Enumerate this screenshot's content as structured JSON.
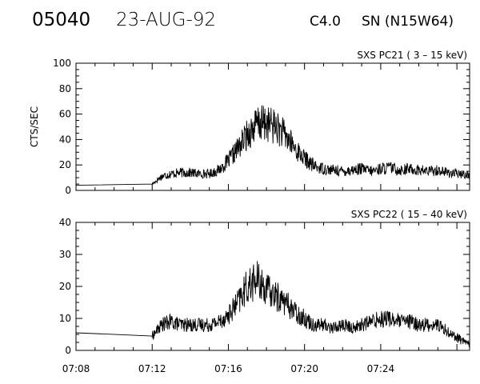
{
  "header": {
    "event_id": "05040",
    "date": "23-AUG-92",
    "flare_class": "C4.0",
    "location": "SN (N15W64)"
  },
  "x_tick_labels": [
    "07:08",
    "07:12",
    "07:16",
    "07:20",
    "07:24"
  ],
  "chart_data": [
    {
      "type": "line",
      "title": "SXS PC21  (  3 – 15 keV)",
      "ylabel": "CTS/SEC",
      "xlabel": "",
      "xlim": [
        "07:08:00",
        "07:28:40"
      ],
      "ylim": [
        0,
        100
      ],
      "y_ticks": [
        0,
        20,
        40,
        60,
        80,
        100
      ],
      "grid": false,
      "series": [
        {
          "points": [
            [
              "07:08:00",
              4
            ],
            [
              "07:12:00",
              5
            ],
            [
              "07:12:30",
              11
            ],
            [
              "07:13:00",
              13
            ],
            [
              "07:13:30",
              14
            ],
            [
              "07:14:00",
              14
            ],
            [
              "07:14:30",
              13
            ],
            [
              "07:15:00",
              13
            ],
            [
              "07:15:30",
              16
            ],
            [
              "07:16:00",
              23
            ],
            [
              "07:16:30",
              33
            ],
            [
              "07:17:00",
              44
            ],
            [
              "07:17:30",
              52
            ],
            [
              "07:18:00",
              53
            ],
            [
              "07:18:30",
              50
            ],
            [
              "07:19:00",
              43
            ],
            [
              "07:19:30",
              33
            ],
            [
              "07:20:00",
              25
            ],
            [
              "07:20:30",
              19
            ],
            [
              "07:21:00",
              17
            ],
            [
              "07:21:30",
              16
            ],
            [
              "07:22:00",
              15
            ],
            [
              "07:22:30",
              16
            ],
            [
              "07:23:00",
              17
            ],
            [
              "07:23:30",
              15
            ],
            [
              "07:24:00",
              17
            ],
            [
              "07:24:30",
              18
            ],
            [
              "07:25:00",
              16
            ],
            [
              "07:25:30",
              17
            ],
            [
              "07:26:00",
              16
            ],
            [
              "07:26:30",
              15
            ],
            [
              "07:27:00",
              16
            ],
            [
              "07:27:30",
              14
            ],
            [
              "07:28:00",
              13
            ],
            [
              "07:28:40",
              12
            ]
          ]
        }
      ]
    },
    {
      "type": "line",
      "title": "SXS PC22  ( 15 – 40 keV)",
      "ylabel": "",
      "xlabel": "",
      "xlim": [
        "07:08:00",
        "07:28:40"
      ],
      "ylim": [
        0,
        40
      ],
      "y_ticks": [
        0,
        10,
        20,
        30,
        40
      ],
      "grid": false,
      "series": [
        {
          "points": [
            [
              "07:08:00",
              5.5
            ],
            [
              "07:12:00",
              4.5
            ],
            [
              "07:12:30",
              8
            ],
            [
              "07:13:00",
              9
            ],
            [
              "07:13:30",
              8
            ],
            [
              "07:14:00",
              8
            ],
            [
              "07:14:30",
              8
            ],
            [
              "07:15:00",
              8
            ],
            [
              "07:15:30",
              9
            ],
            [
              "07:16:00",
              11
            ],
            [
              "07:16:30",
              15
            ],
            [
              "07:17:00",
              20
            ],
            [
              "07:17:30",
              22
            ],
            [
              "07:18:00",
              19
            ],
            [
              "07:18:30",
              17
            ],
            [
              "07:19:00",
              15
            ],
            [
              "07:19:30",
              12
            ],
            [
              "07:20:00",
              10
            ],
            [
              "07:20:30",
              8
            ],
            [
              "07:21:00",
              8
            ],
            [
              "07:21:30",
              7
            ],
            [
              "07:22:00",
              8
            ],
            [
              "07:22:30",
              7
            ],
            [
              "07:23:00",
              8
            ],
            [
              "07:23:30",
              9
            ],
            [
              "07:24:00",
              10
            ],
            [
              "07:24:30",
              10
            ],
            [
              "07:25:00",
              9
            ],
            [
              "07:25:30",
              9
            ],
            [
              "07:26:00",
              8
            ],
            [
              "07:26:30",
              8
            ],
            [
              "07:27:00",
              8
            ],
            [
              "07:27:30",
              6
            ],
            [
              "07:28:00",
              4
            ],
            [
              "07:28:40",
              2
            ]
          ]
        }
      ]
    }
  ]
}
